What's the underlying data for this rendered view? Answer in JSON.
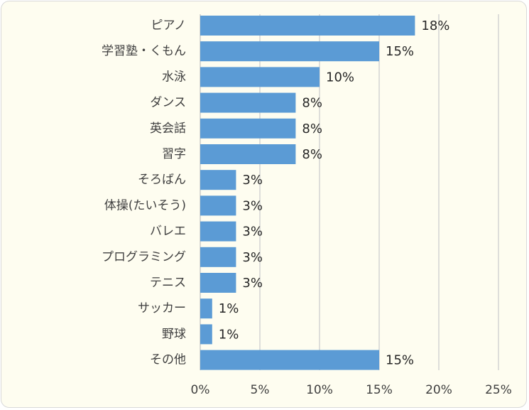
{
  "chart_data": {
    "type": "bar",
    "orientation": "horizontal",
    "categories": [
      "ピアノ",
      "学習塾・くもん",
      "水泳",
      "ダンス",
      "英会話",
      "習字",
      "そろばん",
      "体操(たいそう)",
      "バレエ",
      "プログラミング",
      "テニス",
      "サッカー",
      "野球",
      "その他"
    ],
    "values": [
      18,
      15,
      10,
      8,
      8,
      8,
      3,
      3,
      3,
      3,
      3,
      1,
      1,
      15
    ],
    "value_labels": [
      "18%",
      "15%",
      "10%",
      "8%",
      "8%",
      "8%",
      "3%",
      "3%",
      "3%",
      "3%",
      "3%",
      "1%",
      "1%",
      "15%"
    ],
    "xlim": [
      0,
      25
    ],
    "x_ticks": [
      0,
      5,
      10,
      15,
      20,
      25
    ],
    "x_tick_labels": [
      "0%",
      "5%",
      "10%",
      "15%",
      "20%",
      "25%"
    ],
    "title": "",
    "xlabel": "",
    "ylabel": "",
    "grid": true,
    "legend": false,
    "colors": {
      "bar": "#5b9bd5",
      "background": "#fefdf0",
      "grid": "#d0d0d0",
      "border": "#d9d9d9"
    }
  }
}
